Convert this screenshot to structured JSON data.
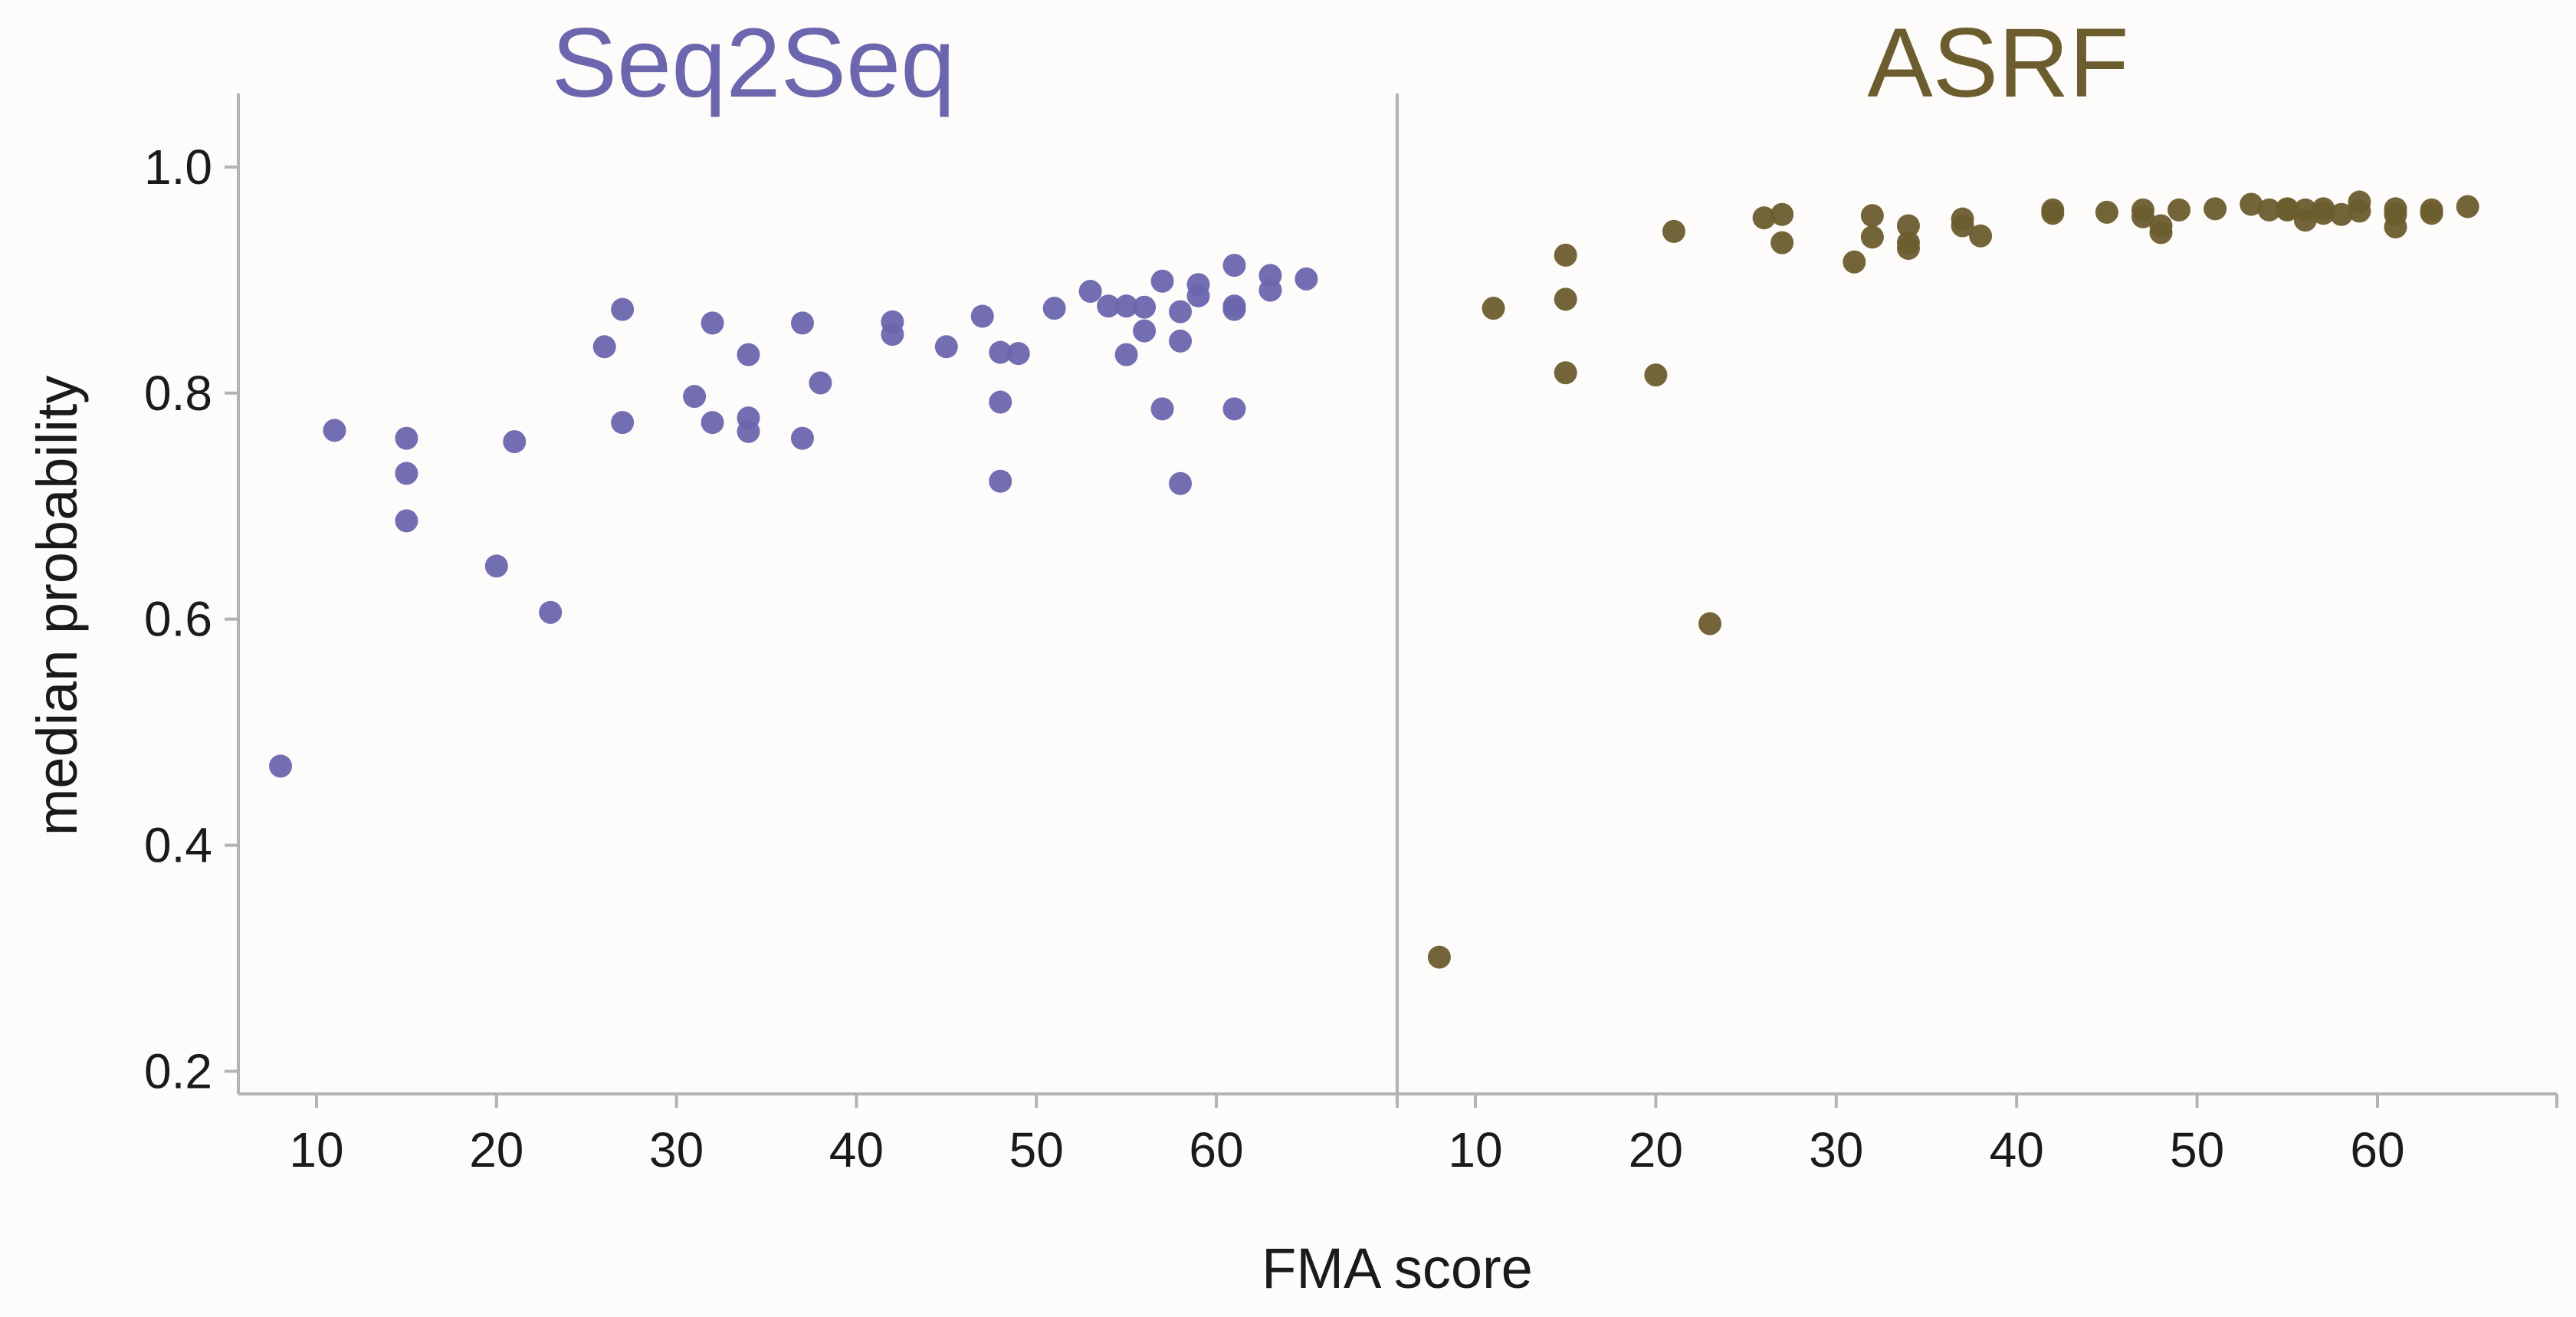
{
  "chart_data": {
    "type": "scatter",
    "xlabel": "FMA score",
    "ylabel": "median probability",
    "ylim": [
      0.18,
      1.065
    ],
    "yticks": [
      0.2,
      0.4,
      0.6,
      0.8,
      1.0
    ],
    "ytick_labels": [
      "0.2",
      "0.4",
      "0.6",
      "0.8",
      "1.0"
    ],
    "xlim": [
      5,
      70
    ],
    "xticks": [
      10,
      20,
      30,
      40,
      50,
      60
    ],
    "xtick_labels": [
      "10",
      "20",
      "30",
      "40",
      "50",
      "60"
    ],
    "grid": false,
    "panels": [
      {
        "title": "Seq2Seq",
        "color": "#6b66ad",
        "points": [
          [
            8,
            0.47
          ],
          [
            11,
            0.767
          ],
          [
            15,
            0.76
          ],
          [
            15,
            0.729
          ],
          [
            15,
            0.687
          ],
          [
            20,
            0.647
          ],
          [
            21,
            0.757
          ],
          [
            23,
            0.606
          ],
          [
            26,
            0.841
          ],
          [
            27,
            0.874
          ],
          [
            27,
            0.774
          ],
          [
            31,
            0.797
          ],
          [
            32,
            0.862
          ],
          [
            32,
            0.774
          ],
          [
            34,
            0.834
          ],
          [
            34,
            0.778
          ],
          [
            34,
            0.766
          ],
          [
            37,
            0.862
          ],
          [
            37,
            0.76
          ],
          [
            38,
            0.809
          ],
          [
            42,
            0.863
          ],
          [
            42,
            0.852
          ],
          [
            45,
            0.841
          ],
          [
            47,
            0.868
          ],
          [
            48,
            0.836
          ],
          [
            48,
            0.792
          ],
          [
            48,
            0.722
          ],
          [
            49,
            0.835
          ],
          [
            51,
            0.875
          ],
          [
            53,
            0.89
          ],
          [
            54,
            0.877
          ],
          [
            55,
            0.877
          ],
          [
            55,
            0.834
          ],
          [
            56,
            0.876
          ],
          [
            56,
            0.855
          ],
          [
            57,
            0.899
          ],
          [
            57,
            0.786
          ],
          [
            58,
            0.872
          ],
          [
            58,
            0.846
          ],
          [
            58,
            0.72
          ],
          [
            59,
            0.896
          ],
          [
            59,
            0.886
          ],
          [
            61,
            0.913
          ],
          [
            61,
            0.877
          ],
          [
            61,
            0.874
          ],
          [
            61,
            0.786
          ],
          [
            63,
            0.904
          ],
          [
            63,
            0.891
          ],
          [
            65,
            0.901
          ]
        ]
      },
      {
        "title": "ASRF",
        "color": "#6b5d2e",
        "points": [
          [
            8,
            0.301
          ],
          [
            11,
            0.875
          ],
          [
            15,
            0.922
          ],
          [
            15,
            0.883
          ],
          [
            15,
            0.818
          ],
          [
            20,
            0.816
          ],
          [
            21,
            0.943
          ],
          [
            23,
            0.596
          ],
          [
            26,
            0.955
          ],
          [
            27,
            0.958
          ],
          [
            27,
            0.933
          ],
          [
            31,
            0.916
          ],
          [
            32,
            0.957
          ],
          [
            32,
            0.938
          ],
          [
            34,
            0.948
          ],
          [
            34,
            0.933
          ],
          [
            34,
            0.928
          ],
          [
            37,
            0.954
          ],
          [
            37,
            0.948
          ],
          [
            38,
            0.939
          ],
          [
            42,
            0.962
          ],
          [
            42,
            0.959
          ],
          [
            45,
            0.96
          ],
          [
            47,
            0.962
          ],
          [
            47,
            0.956
          ],
          [
            48,
            0.948
          ],
          [
            48,
            0.942
          ],
          [
            49,
            0.962
          ],
          [
            51,
            0.963
          ],
          [
            53,
            0.967
          ],
          [
            54,
            0.962
          ],
          [
            55,
            0.963
          ],
          [
            55,
            0.962
          ],
          [
            56,
            0.962
          ],
          [
            56,
            0.953
          ],
          [
            57,
            0.963
          ],
          [
            57,
            0.959
          ],
          [
            58,
            0.958
          ],
          [
            59,
            0.969
          ],
          [
            59,
            0.961
          ],
          [
            61,
            0.963
          ],
          [
            61,
            0.958
          ],
          [
            61,
            0.947
          ],
          [
            63,
            0.962
          ],
          [
            63,
            0.959
          ],
          [
            65,
            0.965
          ]
        ]
      }
    ]
  }
}
